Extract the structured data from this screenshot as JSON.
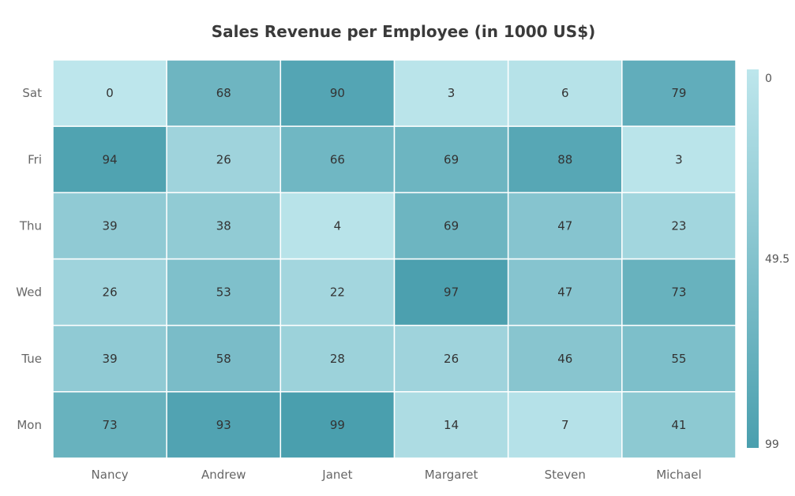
{
  "chart_data": {
    "type": "heatmap",
    "title": "Sales Revenue per Employee (in 1000 US$)",
    "x_categories": [
      "Nancy",
      "Andrew",
      "Janet",
      "Margaret",
      "Steven",
      "Michael"
    ],
    "y_categories": [
      "Sat",
      "Fri",
      "Thu",
      "Wed",
      "Tue",
      "Mon"
    ],
    "values": [
      [
        0,
        68,
        90,
        3,
        6,
        79
      ],
      [
        94,
        26,
        66,
        69,
        88,
        3
      ],
      [
        39,
        38,
        4,
        69,
        47,
        23
      ],
      [
        26,
        53,
        22,
        97,
        47,
        73
      ],
      [
        39,
        58,
        28,
        26,
        46,
        55
      ],
      [
        73,
        93,
        99,
        14,
        7,
        41
      ]
    ],
    "color_scale": {
      "min": 0,
      "mid": 49.5,
      "max": 99,
      "min_label": "0",
      "mid_label": "49.5",
      "max_label": "99",
      "min_color": "#bde6ec",
      "max_color": "#4a9fae"
    },
    "legend_placement": "right",
    "grid": false
  }
}
